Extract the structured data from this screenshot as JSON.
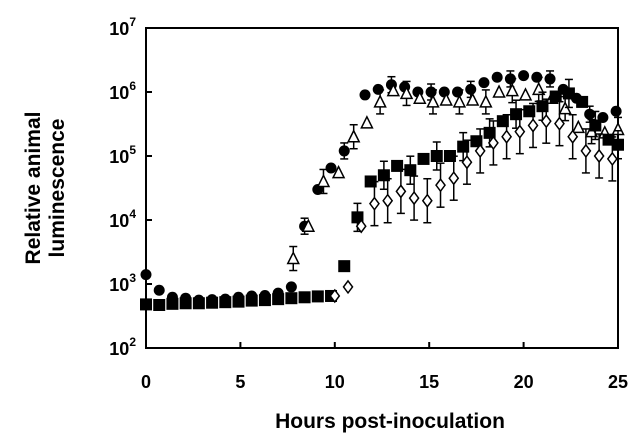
{
  "chart_data": {
    "type": "scatter",
    "title": "",
    "xlabel": "Hours post-inoculation",
    "ylabel_lines": [
      "Relative animal",
      "luminescence"
    ],
    "xlim": [
      0,
      25
    ],
    "ylim": [
      100,
      10000000
    ],
    "y_scale": "log",
    "grid": false,
    "legend": "none",
    "x_ticks": [
      0,
      5,
      10,
      15,
      20,
      25
    ],
    "x_tick_labels": [
      "0",
      "5",
      "10",
      "15",
      "20",
      "25"
    ],
    "y_ticks": [
      100,
      1000,
      10000,
      100000,
      1000000,
      10000000
    ],
    "y_tick_labels": [
      {
        "base": "10",
        "exp": "2"
      },
      {
        "base": "10",
        "exp": "3"
      },
      {
        "base": "10",
        "exp": "4"
      },
      {
        "base": "10",
        "exp": "5"
      },
      {
        "base": "10",
        "exp": "6"
      },
      {
        "base": "10",
        "exp": "7"
      }
    ],
    "series": [
      {
        "marker": "filled-circle",
        "x": [
          0,
          0.7,
          1.4,
          2.1,
          2.8,
          3.5,
          4.2,
          4.9,
          5.6,
          6.3,
          7.0,
          7.7,
          8.4,
          9.1,
          9.8,
          10.5,
          11.6,
          12.3,
          13.0,
          13.7,
          14.4,
          15.1,
          15.8,
          16.5,
          17.2,
          17.9,
          18.6,
          19.3,
          20.0,
          20.7,
          21.4,
          22.1,
          22.8,
          23.5,
          24.2,
          24.9
        ],
        "y": [
          1400,
          800,
          620,
          600,
          560,
          570,
          580,
          620,
          650,
          660,
          720,
          900,
          8000,
          30000,
          65000,
          120000,
          900000,
          1100000,
          1300000,
          1200000,
          1000000,
          1000000,
          1000000,
          1000000,
          1100000,
          1400000,
          1700000,
          1600000,
          1800000,
          1700000,
          1600000,
          1100000,
          800000,
          450000,
          400000,
          500000
        ]
      },
      {
        "marker": "open-triangle",
        "x": [
          7.8,
          8.6,
          9.4,
          10.2,
          11.0,
          11.7,
          12.4,
          13.1,
          13.8,
          14.5,
          15.2,
          15.9,
          16.6,
          17.3,
          18.0,
          18.7,
          19.4,
          20.1,
          20.8,
          21.5,
          22.2,
          22.9,
          23.6,
          24.3,
          25.0
        ],
        "y": [
          2500,
          8000,
          40000,
          55000,
          200000,
          330000,
          700000,
          1050000,
          950000,
          800000,
          700000,
          750000,
          700000,
          750000,
          700000,
          1000000,
          1050000,
          900000,
          1100000,
          800000,
          550000,
          280000,
          240000,
          230000,
          260000
        ]
      },
      {
        "marker": "filled-square",
        "x": [
          0,
          0.7,
          1.4,
          2.1,
          2.8,
          3.5,
          4.2,
          4.9,
          5.6,
          6.3,
          7.0,
          7.7,
          8.4,
          9.1,
          9.8,
          10.5,
          11.2,
          11.9,
          12.6,
          13.3,
          14.0,
          14.7,
          15.4,
          16.1,
          16.8,
          17.5,
          18.2,
          18.9,
          19.6,
          20.3,
          21.0,
          21.7,
          22.4,
          23.1,
          23.8,
          24.5,
          25.0
        ],
        "y": [
          480,
          470,
          490,
          500,
          500,
          510,
          520,
          530,
          550,
          560,
          580,
          600,
          620,
          640,
          650,
          1900,
          11000,
          40000,
          50000,
          70000,
          60000,
          90000,
          100000,
          100000,
          140000,
          170000,
          230000,
          350000,
          450000,
          500000,
          600000,
          850000,
          950000,
          700000,
          300000,
          180000,
          150000
        ]
      },
      {
        "marker": "open-diamond",
        "x": [
          10.0,
          10.7,
          11.4,
          12.1,
          12.8,
          13.5,
          14.2,
          14.9,
          15.6,
          16.3,
          17.0,
          17.7,
          18.4,
          19.1,
          19.8,
          20.5,
          21.2,
          21.9,
          22.6,
          23.3,
          24.0,
          24.7
        ],
        "y": [
          650,
          900,
          8000,
          18000,
          20000,
          28000,
          22000,
          20000,
          35000,
          45000,
          80000,
          120000,
          160000,
          200000,
          240000,
          300000,
          350000,
          320000,
          200000,
          120000,
          100000,
          90000
        ]
      }
    ]
  }
}
